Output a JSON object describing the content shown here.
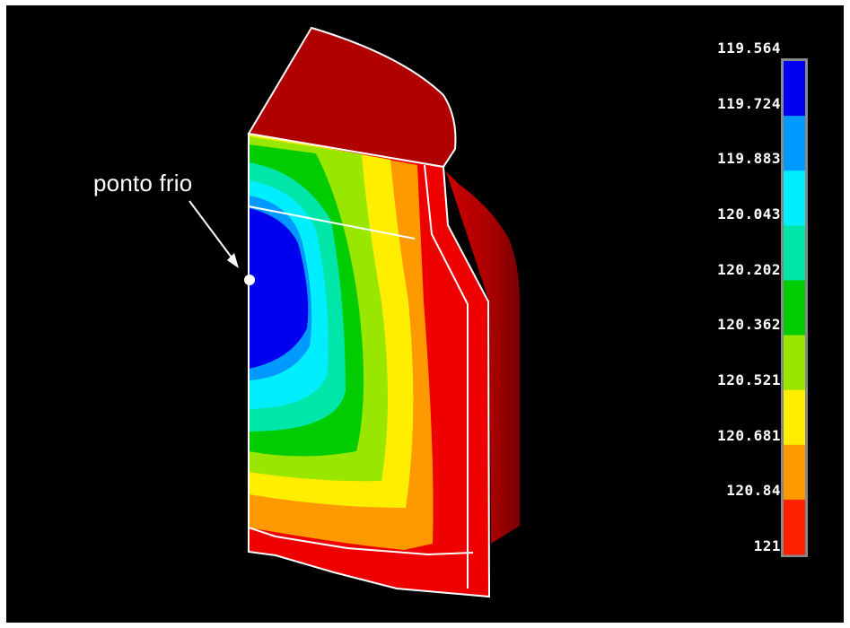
{
  "annotation": {
    "text": "ponto frio"
  },
  "legend": {
    "labels": [
      "119.564",
      "119.724",
      "119.883",
      "120.043",
      "120.202",
      "120.362",
      "120.521",
      "120.681",
      "120.84",
      "121"
    ],
    "colors": [
      "#0000ee",
      "#0099ff",
      "#00eeff",
      "#00e6a8",
      "#00cc00",
      "#99e600",
      "#ffee00",
      "#ff9900",
      "#ff2200"
    ]
  },
  "colors": {
    "background": "#000000",
    "body_red": "#ee0000",
    "dark_red": "#aa0000",
    "outline": "#ffffff"
  }
}
